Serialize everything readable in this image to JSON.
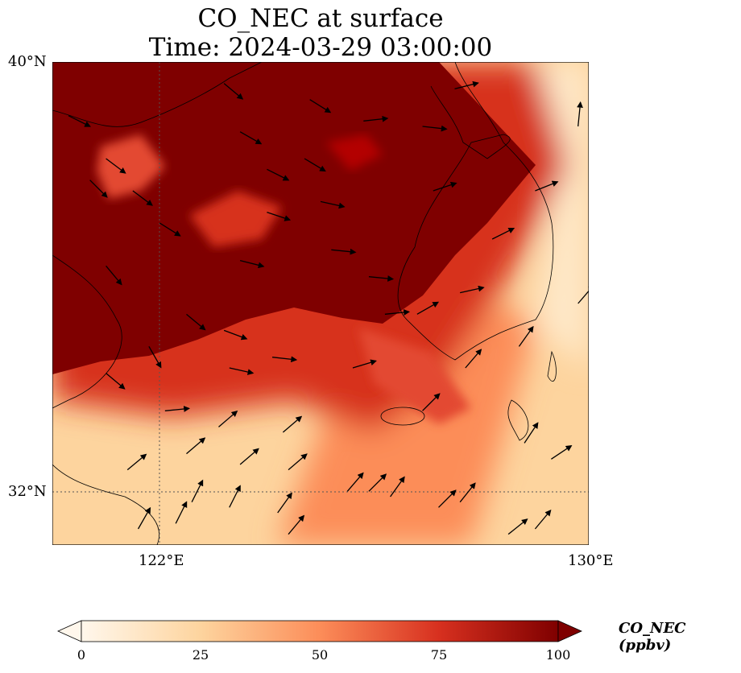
{
  "title": {
    "line1": "CO_NEC at surface",
    "line2": "Time: 2024-03-29 03:00:00"
  },
  "map": {
    "lon_range": [
      120,
      130
    ],
    "lat_range": [
      31,
      40
    ],
    "lat_ticks": [
      {
        "value": 40,
        "label": "40°N"
      },
      {
        "value": 32,
        "label": "32°N"
      }
    ],
    "lon_ticks": [
      {
        "value": 122,
        "label": "122°E"
      },
      {
        "value": 130,
        "label": "130°E"
      }
    ],
    "gridlines": {
      "lon": 122,
      "lat": 32
    },
    "wind_arrows": [
      [
        120.3,
        39.0,
        1,
        -0.5
      ],
      [
        121.0,
        38.2,
        0.8,
        -0.6
      ],
      [
        121.5,
        37.6,
        0.8,
        -0.6
      ],
      [
        122.0,
        37.0,
        0.8,
        -0.5
      ],
      [
        121.0,
        36.2,
        0.5,
        -0.6
      ],
      [
        123.2,
        39.6,
        0.6,
        -0.5
      ],
      [
        123.5,
        38.7,
        0.7,
        -0.4
      ],
      [
        124.0,
        38.0,
        0.8,
        -0.4
      ],
      [
        124.0,
        37.2,
        0.9,
        -0.3
      ],
      [
        123.5,
        36.3,
        0.8,
        -0.2
      ],
      [
        124.7,
        38.2,
        1,
        -0.6
      ],
      [
        125.0,
        37.4,
        0.9,
        -0.2
      ],
      [
        125.2,
        36.5,
        1,
        -0.1
      ],
      [
        125.9,
        36.0,
        1,
        -0.1
      ],
      [
        126.2,
        35.3,
        1,
        0.1
      ],
      [
        122.5,
        35.3,
        0.6,
        -0.5
      ],
      [
        123.2,
        35.0,
        0.8,
        -0.3
      ],
      [
        123.3,
        34.3,
        0.9,
        -0.2
      ],
      [
        124.1,
        34.5,
        0.9,
        -0.1
      ],
      [
        125.6,
        34.3,
        1,
        0.3
      ],
      [
        121.8,
        34.7,
        0.4,
        -0.7
      ],
      [
        121.0,
        34.2,
        0.6,
        -0.5
      ],
      [
        122.1,
        33.5,
        1,
        0.1
      ],
      [
        123.1,
        33.2,
        0.7,
        0.6
      ],
      [
        124.3,
        33.1,
        0.7,
        0.6
      ],
      [
        122.5,
        32.7,
        0.7,
        0.6
      ],
      [
        123.5,
        32.5,
        0.7,
        0.6
      ],
      [
        124.4,
        32.4,
        0.7,
        0.6
      ],
      [
        125.5,
        32.0,
        0.6,
        0.7
      ],
      [
        126.3,
        31.9,
        0.5,
        0.7
      ],
      [
        121.4,
        32.4,
        0.6,
        0.5
      ],
      [
        122.6,
        31.8,
        0.4,
        0.8
      ],
      [
        123.3,
        31.7,
        0.4,
        0.8
      ],
      [
        124.2,
        31.6,
        0.5,
        0.7
      ],
      [
        125.9,
        32.0,
        0.6,
        0.6
      ],
      [
        121.6,
        31.3,
        0.4,
        0.7
      ],
      [
        122.3,
        31.4,
        0.4,
        0.8
      ],
      [
        124.4,
        31.2,
        0.5,
        0.6
      ],
      [
        125.8,
        30.5,
        0.5,
        0.6
      ],
      [
        127.2,
        31.7,
        0.5,
        0.5
      ],
      [
        127.6,
        31.8,
        0.4,
        0.5
      ],
      [
        128.5,
        31.2,
        0.5,
        0.4
      ],
      [
        129.0,
        31.3,
        0.5,
        0.6
      ],
      [
        128.8,
        32.9,
        0.4,
        0.6
      ],
      [
        129.3,
        32.6,
        0.6,
        0.4
      ],
      [
        126.9,
        33.5,
        0.6,
        0.6
      ],
      [
        127.7,
        34.3,
        0.6,
        0.7
      ],
      [
        128.7,
        34.7,
        0.5,
        0.7
      ],
      [
        129.8,
        35.5,
        0.6,
        0.7
      ],
      [
        126.8,
        35.3,
        0.7,
        0.4
      ],
      [
        127.6,
        35.7,
        0.9,
        0.2
      ],
      [
        128.2,
        36.7,
        1,
        0.5
      ],
      [
        129.0,
        37.6,
        1,
        0.4
      ],
      [
        127.1,
        37.6,
        0.9,
        0.3
      ],
      [
        129.8,
        38.8,
        0.1,
        1
      ],
      [
        125.8,
        38.9,
        0.9,
        0.1
      ],
      [
        126.9,
        38.8,
        0.9,
        -0.1
      ],
      [
        127.5,
        39.5,
        0.8,
        0.2
      ],
      [
        124.8,
        39.3,
        0.8,
        -0.5
      ],
      [
        120.7,
        37.8,
        0.7,
        -0.7
      ]
    ]
  },
  "colorbar": {
    "label": "CO_NEC (ppbv)",
    "min": 0,
    "max": 100,
    "ticks": [
      {
        "value": 0,
        "label": "0"
      },
      {
        "value": 25,
        "label": "25"
      },
      {
        "value": 50,
        "label": "50"
      },
      {
        "value": 75,
        "label": "75"
      },
      {
        "value": 100,
        "label": "100"
      }
    ],
    "colors": [
      "#fff7ec",
      "#fdd49e",
      "#fc8d59",
      "#d7301f",
      "#7f0000"
    ]
  }
}
